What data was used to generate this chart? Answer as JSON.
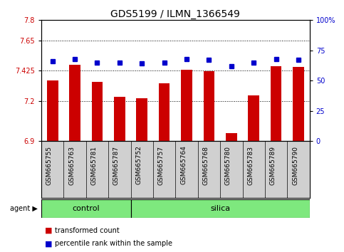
{
  "title": "GDS5199 / ILMN_1366549",
  "samples": [
    "GSM665755",
    "GSM665763",
    "GSM665781",
    "GSM665787",
    "GSM665752",
    "GSM665757",
    "GSM665764",
    "GSM665768",
    "GSM665780",
    "GSM665783",
    "GSM665789",
    "GSM665790"
  ],
  "red_values": [
    7.35,
    7.47,
    7.34,
    7.23,
    7.22,
    7.33,
    7.43,
    7.42,
    6.96,
    7.24,
    7.46,
    7.45
  ],
  "blue_values": [
    66,
    68,
    65,
    65,
    64,
    65,
    68,
    67,
    62,
    65,
    68,
    67
  ],
  "ylim_left": [
    6.9,
    7.8
  ],
  "ylim_right": [
    0,
    100
  ],
  "yticks_left": [
    6.9,
    7.2,
    7.425,
    7.65,
    7.8
  ],
  "ytick_labels_left": [
    "6.9",
    "7.2",
    "7.425",
    "7.65",
    "7.8"
  ],
  "yticks_right": [
    0,
    25,
    50,
    75,
    100
  ],
  "ytick_labels_right": [
    "0",
    "25",
    "50",
    "75",
    "100%"
  ],
  "hlines": [
    7.2,
    7.425,
    7.65
  ],
  "control_samples": 4,
  "silica_samples": 8,
  "control_label": "control",
  "silica_label": "silica",
  "agent_label": "agent",
  "legend_red": "transformed count",
  "legend_blue": "percentile rank within the sample",
  "bar_color": "#cc0000",
  "dot_color": "#0000cc",
  "green_bg": "#7ee87e",
  "tick_label_bg": "#d0d0d0",
  "bar_width": 0.5,
  "bar_baseline": 6.9,
  "title_fontsize": 10,
  "tick_fontsize": 7,
  "legend_fontsize": 7
}
